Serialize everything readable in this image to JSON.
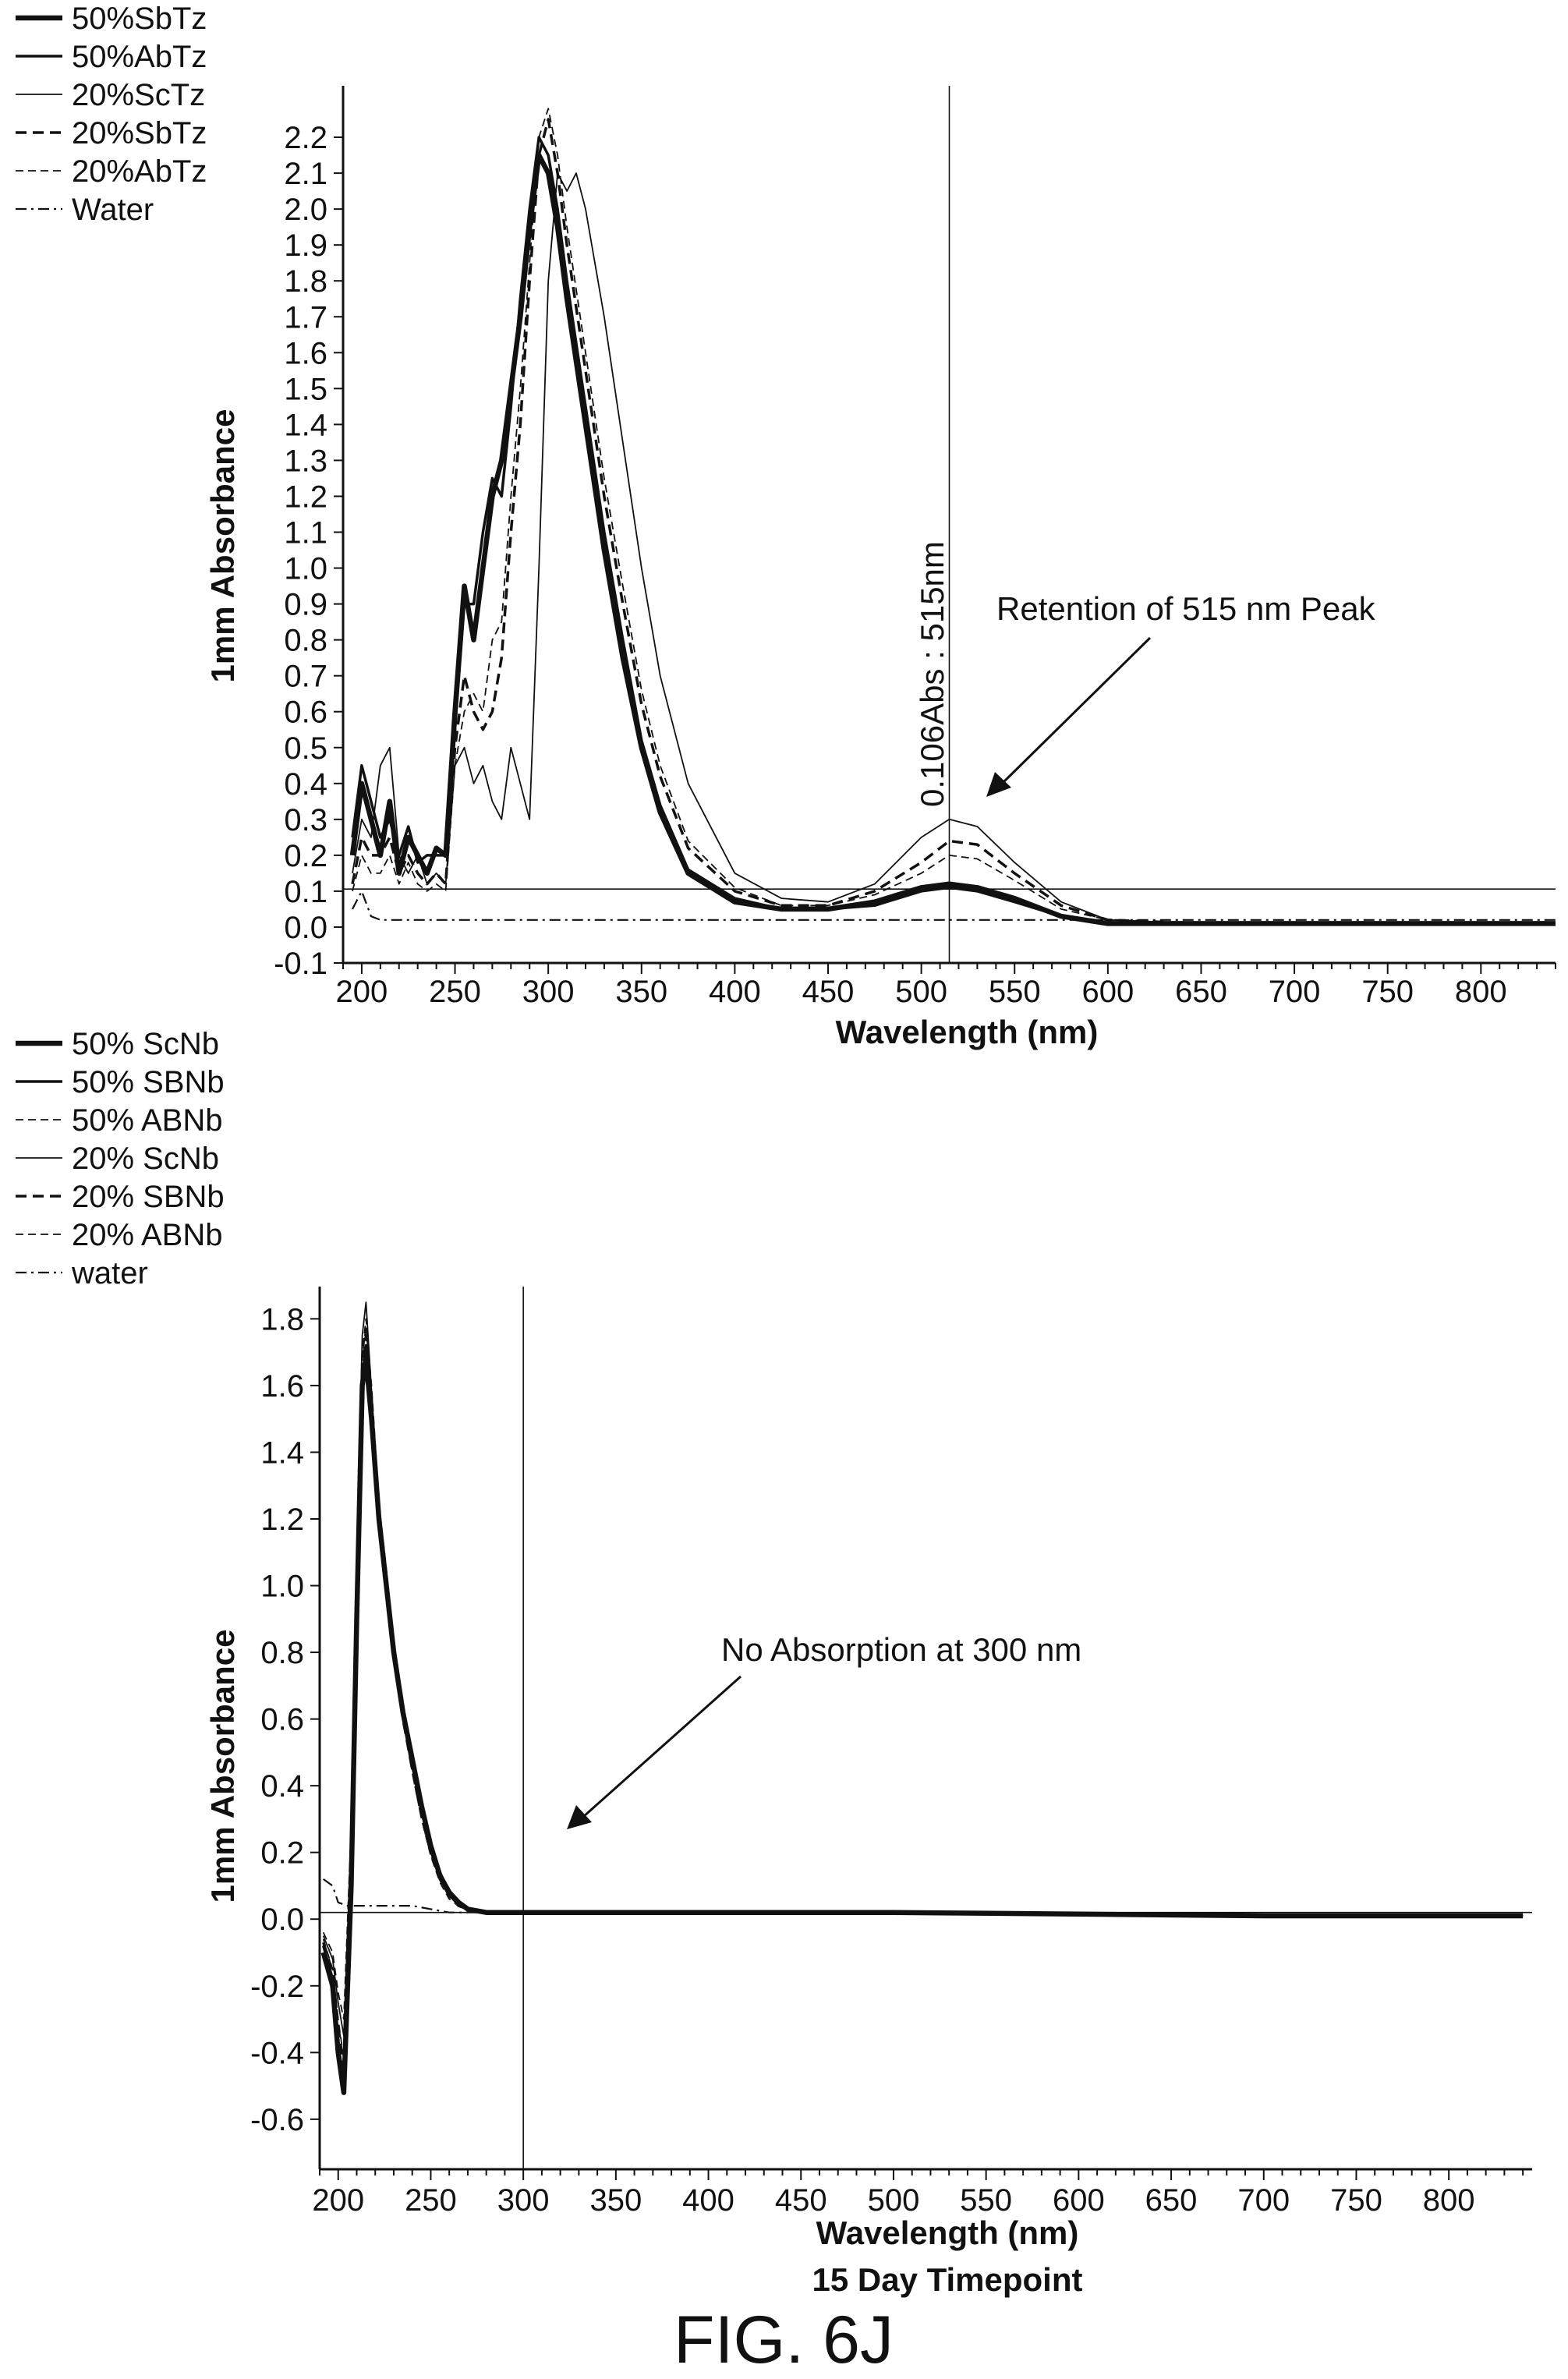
{
  "figure_label": "FIG. 6J",
  "chart_data": [
    {
      "type": "line",
      "xlabel": "Wavelength (nm)",
      "ylabel": "1mm Absorbance",
      "xlim": [
        190,
        840
      ],
      "ylim": [
        -0.1,
        2.3
      ],
      "xticks": [
        "200",
        "250",
        "300",
        "350",
        "400",
        "450",
        "500",
        "550",
        "600",
        "650",
        "700",
        "750",
        "800"
      ],
      "yticks": [
        "-0.1",
        "0.0",
        "0.1",
        "0.2",
        "0.3",
        "0.4",
        "0.5",
        "0.6",
        "0.7",
        "0.8",
        "0.9",
        "1.0",
        "1.1",
        "1.2",
        "1.3",
        "1.4",
        "1.5",
        "1.6",
        "1.7",
        "1.8",
        "1.9",
        "2.0",
        "2.1",
        "2.2"
      ],
      "legend_position": "top-left",
      "cursor_x": 515,
      "hline_y": 0.106,
      "cursor_label": "0.106Abs : 515nm",
      "annotation": "Retention of 515 nm Peak",
      "series": [
        {
          "name": "50%SbTz",
          "style": "thick",
          "x": [
            195,
            200,
            205,
            210,
            215,
            220,
            225,
            230,
            235,
            240,
            245,
            250,
            255,
            260,
            265,
            270,
            275,
            280,
            285,
            290,
            295,
            300,
            305,
            310,
            320,
            330,
            340,
            350,
            360,
            375,
            400,
            425,
            450,
            475,
            500,
            515,
            530,
            550,
            575,
            600,
            650,
            700,
            750,
            800,
            840
          ],
          "y": [
            0.2,
            0.4,
            0.3,
            0.2,
            0.35,
            0.15,
            0.25,
            0.2,
            0.15,
            0.22,
            0.2,
            0.6,
            0.95,
            0.8,
            1.0,
            1.2,
            1.3,
            1.5,
            1.7,
            1.95,
            2.15,
            2.1,
            1.95,
            1.75,
            1.4,
            1.05,
            0.75,
            0.5,
            0.32,
            0.15,
            0.07,
            0.05,
            0.05,
            0.07,
            0.11,
            0.12,
            0.11,
            0.08,
            0.03,
            0.01,
            0.01,
            0.01,
            0.01,
            0.01,
            0.01
          ]
        },
        {
          "name": "50%AbTz",
          "style": "solid",
          "x": [
            195,
            200,
            205,
            210,
            215,
            220,
            225,
            230,
            235,
            240,
            245,
            250,
            255,
            260,
            265,
            270,
            275,
            280,
            285,
            290,
            295,
            300,
            305,
            310,
            320,
            330,
            340,
            350,
            360,
            375,
            400,
            425,
            450,
            475,
            500,
            515,
            530,
            550,
            575,
            600,
            650,
            700,
            750,
            800,
            840
          ],
          "y": [
            0.25,
            0.45,
            0.35,
            0.25,
            0.3,
            0.2,
            0.28,
            0.18,
            0.2,
            0.2,
            0.2,
            0.55,
            0.9,
            0.9,
            1.1,
            1.25,
            1.2,
            1.45,
            1.75,
            2.0,
            2.2,
            2.15,
            2.0,
            1.8,
            1.45,
            1.1,
            0.8,
            0.52,
            0.34,
            0.16,
            0.08,
            0.05,
            0.05,
            0.06,
            0.1,
            0.11,
            0.1,
            0.07,
            0.03,
            0.01,
            0.01,
            0.01,
            0.01,
            0.01,
            0.01
          ]
        },
        {
          "name": "20%ScTz",
          "style": "thin",
          "x": [
            195,
            200,
            205,
            210,
            215,
            220,
            225,
            230,
            235,
            240,
            245,
            250,
            255,
            260,
            265,
            270,
            275,
            280,
            285,
            290,
            295,
            300,
            305,
            310,
            315,
            320,
            330,
            340,
            350,
            360,
            375,
            400,
            425,
            450,
            475,
            500,
            515,
            530,
            550,
            575,
            600,
            650,
            700,
            750,
            800,
            840
          ],
          "y": [
            0.15,
            0.3,
            0.25,
            0.45,
            0.5,
            0.2,
            0.15,
            0.2,
            0.12,
            0.15,
            0.12,
            0.45,
            0.5,
            0.4,
            0.45,
            0.35,
            0.3,
            0.5,
            0.4,
            0.3,
            1.0,
            1.8,
            2.1,
            2.05,
            2.1,
            2.0,
            1.7,
            1.35,
            1.0,
            0.7,
            0.4,
            0.15,
            0.08,
            0.07,
            0.12,
            0.25,
            0.3,
            0.28,
            0.18,
            0.07,
            0.02,
            0.01,
            0.01,
            0.01,
            0.01,
            0.01
          ]
        },
        {
          "name": "20%SbTz",
          "style": "dashed",
          "x": [
            195,
            200,
            205,
            210,
            215,
            220,
            225,
            230,
            235,
            240,
            245,
            250,
            255,
            260,
            265,
            270,
            275,
            280,
            285,
            290,
            295,
            300,
            305,
            310,
            320,
            330,
            340,
            350,
            360,
            375,
            400,
            425,
            450,
            475,
            500,
            515,
            530,
            550,
            575,
            600,
            650,
            700,
            750,
            800,
            840
          ],
          "y": [
            0.12,
            0.25,
            0.2,
            0.2,
            0.25,
            0.15,
            0.2,
            0.15,
            0.12,
            0.15,
            0.12,
            0.5,
            0.7,
            0.6,
            0.55,
            0.6,
            0.75,
            1.1,
            1.4,
            1.8,
            2.15,
            2.25,
            2.1,
            1.9,
            1.55,
            1.2,
            0.9,
            0.62,
            0.42,
            0.22,
            0.1,
            0.06,
            0.06,
            0.1,
            0.18,
            0.24,
            0.23,
            0.15,
            0.06,
            0.02,
            0.01,
            0.01,
            0.01,
            0.01,
            0.01
          ]
        },
        {
          "name": "20%AbTz",
          "style": "thin-dashed",
          "x": [
            195,
            200,
            205,
            210,
            215,
            220,
            225,
            230,
            235,
            240,
            245,
            250,
            255,
            260,
            265,
            270,
            275,
            280,
            285,
            290,
            295,
            300,
            305,
            310,
            320,
            330,
            340,
            350,
            360,
            375,
            400,
            425,
            450,
            475,
            500,
            515,
            530,
            550,
            575,
            600,
            650,
            700,
            750,
            800,
            840
          ],
          "y": [
            0.1,
            0.2,
            0.15,
            0.15,
            0.2,
            0.12,
            0.18,
            0.12,
            0.1,
            0.12,
            0.1,
            0.45,
            0.6,
            0.65,
            0.6,
            0.8,
            0.85,
            1.2,
            1.5,
            1.85,
            2.2,
            2.28,
            2.15,
            1.95,
            1.6,
            1.25,
            0.95,
            0.66,
            0.45,
            0.24,
            0.11,
            0.06,
            0.06,
            0.09,
            0.15,
            0.2,
            0.19,
            0.13,
            0.05,
            0.02,
            0.01,
            0.01,
            0.01,
            0.01,
            0.01
          ]
        },
        {
          "name": "Water",
          "style": "dashdot",
          "x": [
            195,
            200,
            205,
            210,
            215,
            220,
            240,
            260,
            300,
            350,
            400,
            450,
            500,
            550,
            600,
            650,
            700,
            750,
            800,
            840
          ],
          "y": [
            0.05,
            0.1,
            0.03,
            0.02,
            0.02,
            0.02,
            0.02,
            0.02,
            0.02,
            0.02,
            0.02,
            0.02,
            0.02,
            0.02,
            0.02,
            0.02,
            0.02,
            0.02,
            0.02,
            0.02
          ]
        }
      ]
    },
    {
      "type": "line",
      "xlabel": "Wavelength (nm)",
      "subtitle": "15 Day Timepoint",
      "ylabel": "1mm Absorbance",
      "xlim": [
        190,
        845
      ],
      "ylim": [
        -0.75,
        1.85
      ],
      "xticks": [
        "200",
        "250",
        "300",
        "350",
        "400",
        "450",
        "500",
        "550",
        "600",
        "650",
        "700",
        "750",
        "800"
      ],
      "yticks": [
        "-0.6",
        "-0.4",
        "-0.2",
        "0.0",
        "0.2",
        "0.4",
        "0.6",
        "0.8",
        "1.0",
        "1.2",
        "1.4",
        "1.6",
        "1.8"
      ],
      "legend_position": "top-left",
      "cursor_x": 300,
      "hline_y": 0.02,
      "annotation": "No Absorption at 300 nm",
      "series": [
        {
          "name": "50% ScNb",
          "style": "thick",
          "x": [
            192,
            197,
            200,
            203,
            207,
            210,
            213,
            215,
            218,
            222,
            226,
            230,
            235,
            240,
            245,
            250,
            255,
            260,
            265,
            270,
            280,
            300,
            400,
            500,
            600,
            700,
            800,
            840
          ],
          "y": [
            -0.1,
            -0.2,
            -0.4,
            -0.52,
            0.1,
            0.9,
            1.6,
            1.68,
            1.5,
            1.2,
            1.0,
            0.8,
            0.62,
            0.48,
            0.34,
            0.22,
            0.13,
            0.08,
            0.05,
            0.03,
            0.02,
            0.02,
            0.02,
            0.02,
            0.015,
            0.01,
            0.01,
            0.01
          ]
        },
        {
          "name": "50% SBNb",
          "style": "solid",
          "x": [
            192,
            197,
            200,
            203,
            207,
            210,
            213,
            215,
            218,
            222,
            226,
            230,
            235,
            240,
            245,
            250,
            255,
            260,
            265,
            270,
            280,
            300,
            400,
            500,
            600,
            700,
            800,
            840
          ],
          "y": [
            -0.08,
            -0.18,
            -0.38,
            -0.48,
            0.2,
            1.0,
            1.62,
            1.72,
            1.55,
            1.22,
            1.02,
            0.82,
            0.63,
            0.49,
            0.35,
            0.23,
            0.14,
            0.08,
            0.05,
            0.03,
            0.02,
            0.02,
            0.02,
            0.02,
            0.015,
            0.01,
            0.01,
            0.01
          ]
        },
        {
          "name": "50% ABNb",
          "style": "thin-dashed",
          "x": [
            192,
            197,
            200,
            203,
            207,
            210,
            213,
            215,
            218,
            222,
            226,
            230,
            235,
            240,
            245,
            250,
            255,
            260,
            265,
            270,
            280,
            300,
            400,
            500,
            600,
            700,
            800,
            840
          ],
          "y": [
            -0.06,
            -0.15,
            -0.3,
            -0.42,
            0.3,
            1.1,
            1.7,
            1.8,
            1.6,
            1.25,
            1.05,
            0.84,
            0.64,
            0.48,
            0.33,
            0.21,
            0.13,
            0.07,
            0.04,
            0.03,
            0.02,
            0.02,
            0.02,
            0.02,
            0.015,
            0.01,
            0.01,
            0.01
          ]
        },
        {
          "name": "20% ScNb",
          "style": "thin",
          "x": [
            192,
            197,
            200,
            203,
            207,
            210,
            213,
            215,
            218,
            222,
            226,
            230,
            235,
            240,
            245,
            250,
            255,
            260,
            265,
            270,
            280,
            300,
            400,
            500,
            600,
            700,
            800,
            840
          ],
          "y": [
            -0.05,
            -0.12,
            -0.25,
            -0.35,
            0.25,
            1.05,
            1.75,
            1.85,
            1.58,
            1.24,
            1.04,
            0.83,
            0.62,
            0.46,
            0.32,
            0.2,
            0.12,
            0.07,
            0.04,
            0.03,
            0.02,
            0.02,
            0.02,
            0.02,
            0.015,
            0.01,
            0.01,
            0.01
          ]
        },
        {
          "name": "20% SBNb",
          "style": "dashed",
          "x": [
            192,
            197,
            200,
            203,
            207,
            210,
            213,
            215,
            218,
            222,
            226,
            230,
            235,
            240,
            245,
            250,
            255,
            260,
            265,
            270,
            280,
            300,
            400,
            500,
            600,
            700,
            800,
            840
          ],
          "y": [
            -0.07,
            -0.16,
            -0.32,
            -0.45,
            0.22,
            1.0,
            1.65,
            1.75,
            1.56,
            1.2,
            1.0,
            0.8,
            0.6,
            0.45,
            0.31,
            0.2,
            0.12,
            0.07,
            0.04,
            0.03,
            0.02,
            0.02,
            0.02,
            0.02,
            0.015,
            0.01,
            0.01,
            0.01
          ]
        },
        {
          "name": "20% ABNb",
          "style": "thin-dashed",
          "x": [
            192,
            197,
            200,
            203,
            207,
            210,
            213,
            215,
            218,
            222,
            226,
            230,
            235,
            240,
            245,
            250,
            255,
            260,
            265,
            270,
            280,
            300,
            400,
            500,
            600,
            700,
            800,
            840
          ],
          "y": [
            -0.04,
            -0.1,
            -0.22,
            -0.3,
            0.28,
            1.08,
            1.68,
            1.78,
            1.57,
            1.22,
            1.02,
            0.8,
            0.6,
            0.44,
            0.3,
            0.19,
            0.11,
            0.06,
            0.04,
            0.03,
            0.02,
            0.02,
            0.02,
            0.02,
            0.015,
            0.01,
            0.01,
            0.01
          ]
        },
        {
          "name": "water",
          "style": "dashdot",
          "x": [
            192,
            197,
            200,
            205,
            210,
            220,
            230,
            240,
            250,
            260,
            280,
            300,
            400,
            500,
            600,
            700,
            800,
            840
          ],
          "y": [
            0.12,
            0.1,
            0.05,
            0.04,
            0.04,
            0.04,
            0.04,
            0.04,
            0.03,
            0.02,
            0.02,
            0.02,
            0.02,
            0.02,
            0.015,
            0.01,
            0.01,
            0.01
          ]
        }
      ]
    }
  ]
}
